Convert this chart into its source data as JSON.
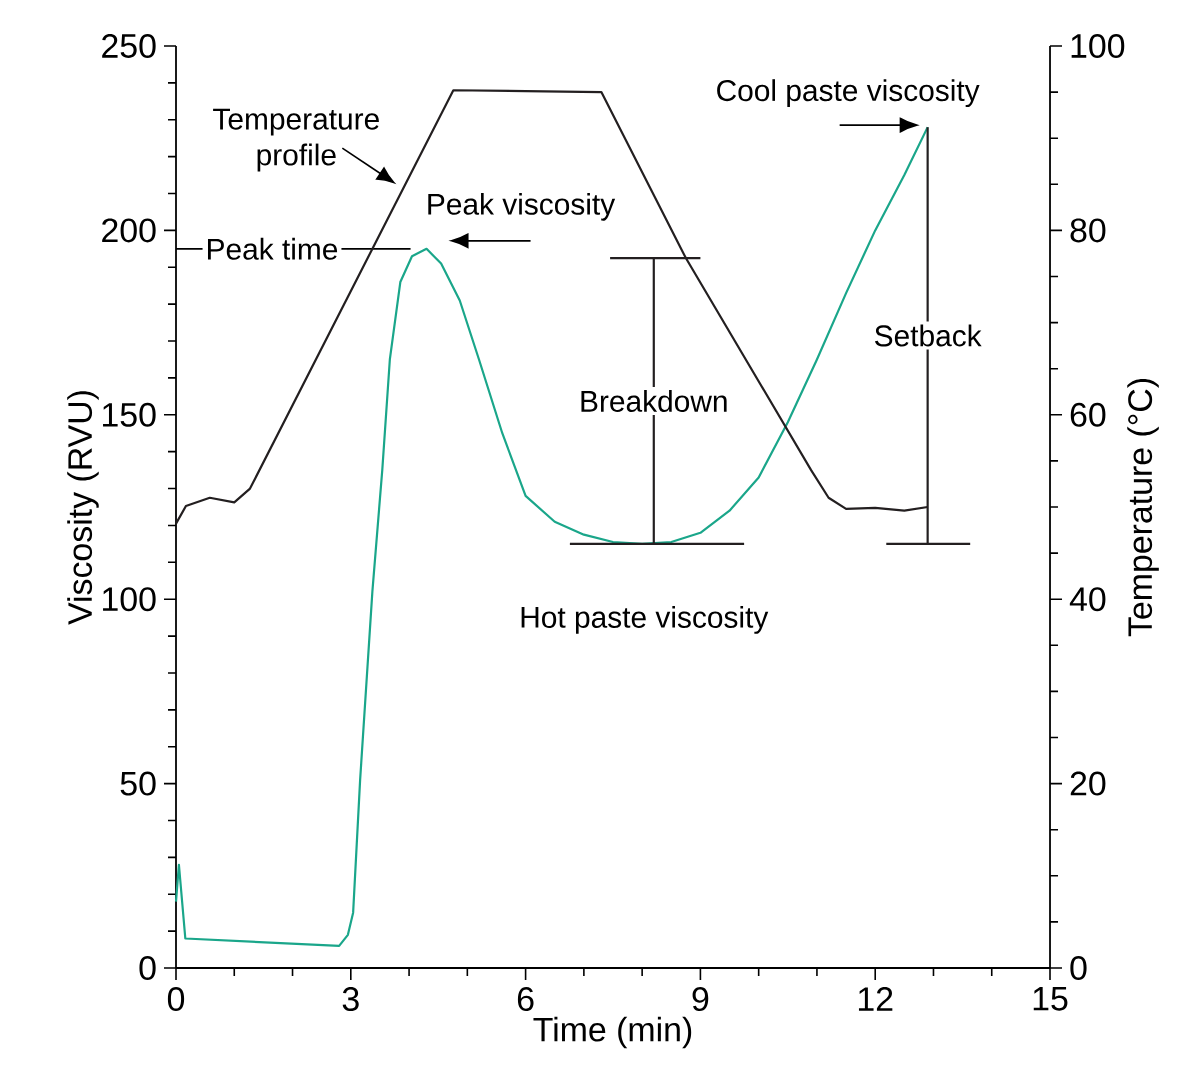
{
  "chart_data": {
    "type": "line",
    "xlabel": "Time (min)",
    "ylabel": "Viscosity (RVU)",
    "y2label": "Temperature (°C)",
    "xlim": [
      0,
      15
    ],
    "ylim": [
      0,
      250
    ],
    "y2lim": [
      0,
      100
    ],
    "xticks": [
      0,
      {
        "value": 1,
        "label": null
      },
      {
        "value": 2,
        "label": null
      },
      3,
      {
        "value": 4,
        "label": null
      },
      {
        "value": 5,
        "label": null
      },
      6,
      {
        "value": 7,
        "label": null
      },
      {
        "value": 8,
        "label": null
      },
      9,
      {
        "value": 10,
        "label": null
      },
      {
        "value": 11,
        "label": null
      },
      12,
      {
        "value": 13,
        "label": null
      },
      {
        "value": 14,
        "label": null
      },
      15
    ],
    "yticks": [
      0,
      {
        "value": 10,
        "label": null
      },
      {
        "value": 20,
        "label": null
      },
      {
        "value": 30,
        "label": null
      },
      {
        "value": 40,
        "label": null
      },
      50,
      {
        "value": 60,
        "label": null
      },
      {
        "value": 70,
        "label": null
      },
      {
        "value": 80,
        "label": null
      },
      {
        "value": 90,
        "label": null
      },
      100,
      {
        "value": 110,
        "label": null
      },
      {
        "value": 120,
        "label": null
      },
      {
        "value": 130,
        "label": null
      },
      {
        "value": 140,
        "label": null
      },
      150,
      {
        "value": 160,
        "label": null
      },
      {
        "value": 170,
        "label": null
      },
      {
        "value": 180,
        "label": null
      },
      {
        "value": 190,
        "label": null
      },
      200,
      {
        "value": 210,
        "label": null
      },
      {
        "value": 220,
        "label": null
      },
      {
        "value": 230,
        "label": null
      },
      {
        "value": 240,
        "label": null
      },
      250
    ],
    "y2ticks": [
      0,
      {
        "value": 5,
        "label": null
      },
      {
        "value": 10,
        "label": null
      },
      {
        "value": 15,
        "label": null
      },
      20,
      {
        "value": 25,
        "label": null
      },
      {
        "value": 30,
        "label": null
      },
      {
        "value": 35,
        "label": null
      },
      40,
      {
        "value": 45,
        "label": null
      },
      {
        "value": 50,
        "label": null
      },
      {
        "value": 55,
        "label": null
      },
      60,
      {
        "value": 65,
        "label": null
      },
      {
        "value": 70,
        "label": null
      },
      {
        "value": 75,
        "label": null
      },
      80,
      {
        "value": 85,
        "label": null
      },
      {
        "value": 90,
        "label": null
      },
      {
        "value": 95,
        "label": null
      },
      100
    ],
    "series": [
      {
        "color": "#1aa68a",
        "x": [
          0,
          0.05,
          0.16,
          2.8,
          2.95,
          3.04,
          3.16,
          3.37,
          3.54,
          3.67,
          3.85,
          4.05,
          4.3,
          4.55,
          4.87,
          5.2,
          5.6,
          6.0,
          6.5,
          7.0,
          7.5,
          8.0,
          8.5,
          9.0,
          9.5,
          10.0,
          10.5,
          11.0,
          11.5,
          12.0,
          12.5,
          12.9
        ],
        "values": [
          18,
          28,
          8,
          6,
          9,
          15,
          51,
          102,
          135,
          165,
          186,
          193,
          195,
          191,
          181,
          165,
          145,
          128,
          121,
          117.5,
          115.5,
          115,
          115.5,
          118,
          124,
          133,
          148,
          165,
          183,
          200,
          215,
          228
        ]
      },
      {
        "color": "#231f20",
        "x": [
          7.45,
          9.0
        ],
        "values": [
          192.5,
          192.5
        ]
      },
      {
        "color": "#231f20",
        "x": [
          8.2,
          8.2
        ],
        "values": [
          192.5,
          115
        ]
      },
      {
        "color": "#231f20",
        "x": [
          6.76,
          9.75
        ],
        "values": [
          115,
          115
        ]
      },
      {
        "color": "#231f20",
        "x": [
          12.9,
          12.9
        ],
        "values": [
          228,
          115
        ]
      },
      {
        "color": "#231f20",
        "x": [
          12.19,
          13.63
        ],
        "values": [
          115,
          115
        ]
      },
      {
        "color": "#231f20",
        "axis": "y2",
        "x": [
          0,
          0.17,
          0.58,
          1.0,
          1.27,
          4.76,
          6.0,
          7.3,
          8.75,
          10.9,
          11.2,
          11.5,
          12.0,
          12.5,
          12.9
        ],
        "values": [
          48.2,
          50.1,
          51,
          50.5,
          52,
          95.2,
          95.1,
          95,
          77,
          54,
          51,
          49.8,
          49.9,
          49.6,
          50
        ]
      }
    ],
    "annotations": [
      {
        "text": "Temperature profile",
        "x": 3.85,
        "y": 212
      },
      {
        "text": "Peak viscosity",
        "x": 4.3,
        "y": 195
      },
      {
        "text": "Peak time",
        "x": 4.3,
        "y": 195
      },
      {
        "text": "Breakdown",
        "x": 8.2,
        "y": 153.75
      },
      {
        "text": "Setback",
        "x": 12.9,
        "y": 171.5
      },
      {
        "text": "Cool paste viscosity",
        "x": 12.9,
        "y": 228
      },
      {
        "text": "Hot paste viscosity",
        "x": 8.2,
        "y": 115
      }
    ]
  }
}
